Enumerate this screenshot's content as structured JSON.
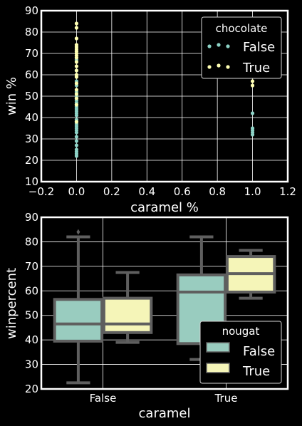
{
  "chart_data": [
    {
      "type": "scatter",
      "xlabel": "caramel %",
      "ylabel": "win %",
      "xlim": [
        -0.2,
        1.2
      ],
      "ylim": [
        10,
        90
      ],
      "xticks": [
        -0.2,
        0.0,
        0.2,
        0.4,
        0.6,
        0.8,
        1.0,
        1.2
      ],
      "xtick_labels": [
        "−0.2",
        "0.0",
        "0.2",
        "0.4",
        "0.6",
        "0.8",
        "1.0",
        "1.2"
      ],
      "yticks": [
        10,
        20,
        30,
        40,
        50,
        60,
        70,
        80,
        90
      ],
      "grid": true,
      "legend": {
        "title": "chocolate",
        "placement": "top-right"
      },
      "series": [
        {
          "name": "False",
          "color": "#8dd3c7",
          "points": [
            [
              0,
              22
            ],
            [
              0,
              23
            ],
            [
              0,
              24
            ],
            [
              0,
              25
            ],
            [
              0,
              27
            ],
            [
              0,
              29
            ],
            [
              0,
              31
            ],
            [
              0,
              33
            ],
            [
              0,
              34
            ],
            [
              0,
              35
            ],
            [
              0,
              36
            ],
            [
              0,
              37
            ],
            [
              0,
              38
            ],
            [
              0,
              39
            ],
            [
              0,
              41
            ],
            [
              0,
              42
            ],
            [
              0,
              43
            ],
            [
              0,
              44
            ],
            [
              0,
              45
            ],
            [
              0,
              46
            ],
            [
              0,
              47
            ],
            [
              0,
              48
            ],
            [
              0,
              49
            ],
            [
              0,
              50
            ],
            [
              0,
              52
            ],
            [
              0,
              55
            ],
            [
              0,
              57
            ],
            [
              0,
              62
            ],
            [
              0,
              67
            ],
            [
              0,
              71
            ],
            [
              1,
              32
            ],
            [
              1,
              33
            ],
            [
              1,
              34
            ],
            [
              1,
              35
            ],
            [
              1,
              42
            ]
          ]
        },
        {
          "name": "True",
          "color": "#ffffb3",
          "points": [
            [
              0,
              38
            ],
            [
              0,
              46
            ],
            [
              0,
              49
            ],
            [
              0,
              51
            ],
            [
              0,
              53
            ],
            [
              0,
              56
            ],
            [
              0,
              59
            ],
            [
              0,
              60
            ],
            [
              0,
              62
            ],
            [
              0,
              64
            ],
            [
              0,
              66
            ],
            [
              0,
              68
            ],
            [
              0,
              69
            ],
            [
              0,
              70
            ],
            [
              0,
              71
            ],
            [
              0,
              72
            ],
            [
              0,
              73
            ],
            [
              0,
              74
            ],
            [
              0,
              77
            ],
            [
              0,
              82
            ],
            [
              0,
              84
            ],
            [
              1,
              55
            ],
            [
              1,
              57
            ],
            [
              1,
              59
            ],
            [
              1,
              61
            ],
            [
              1,
              63
            ],
            [
              1,
              65
            ],
            [
              1,
              67
            ],
            [
              1,
              70
            ],
            [
              1,
              73
            ],
            [
              1,
              77
            ]
          ]
        }
      ]
    },
    {
      "type": "box",
      "xlabel": "caramel",
      "ylabel": "winpercent",
      "categories": [
        "False",
        "True"
      ],
      "ylim": [
        20,
        90
      ],
      "yticks": [
        20,
        30,
        40,
        50,
        60,
        70,
        80,
        90
      ],
      "grid": true,
      "legend": {
        "title": "nougat",
        "placement": "lower-right"
      },
      "box_edge_color": "#5f5f5f",
      "series": [
        {
          "name": "False",
          "color": "#99ccbf",
          "boxes": [
            {
              "whislo": 22.5,
              "q1": 39.5,
              "med": 46.5,
              "q3": 56.5,
              "whishi": 82,
              "fliers": [
                84
              ]
            },
            {
              "whislo": 32,
              "q1": 38.5,
              "med": 59.5,
              "q3": 66.5,
              "whishi": 82,
              "fliers": []
            }
          ]
        },
        {
          "name": "True",
          "color": "#f5f5b8",
          "boxes": [
            {
              "whislo": 39,
              "q1": 43,
              "med": 46.5,
              "q3": 57,
              "whishi": 67.5,
              "fliers": []
            },
            {
              "whislo": 57,
              "q1": 59.5,
              "med": 67,
              "q3": 74,
              "whishi": 76.5,
              "fliers": []
            }
          ]
        }
      ]
    }
  ]
}
